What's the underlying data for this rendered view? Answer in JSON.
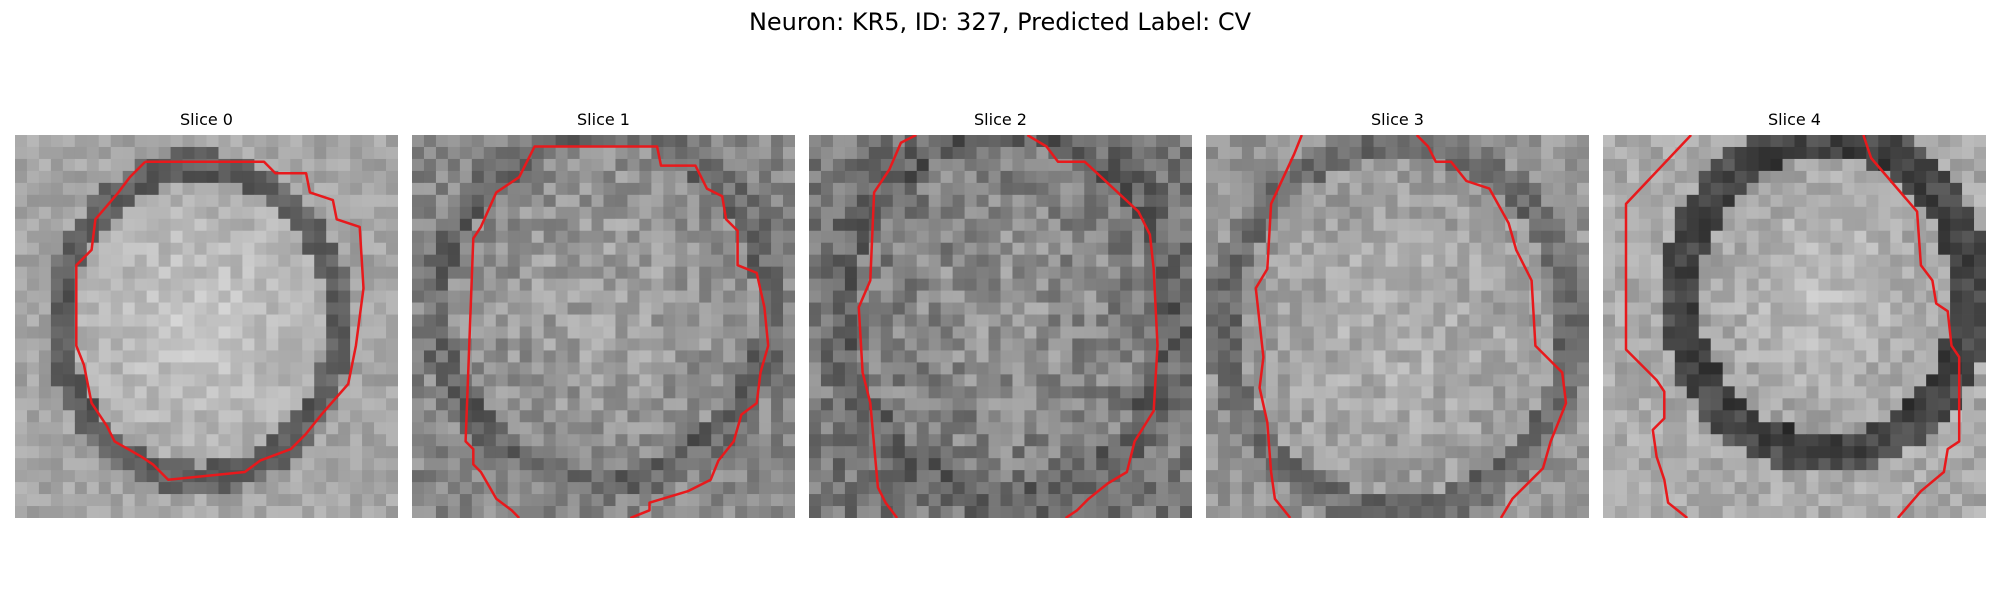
{
  "figure": {
    "title": "Neuron: KR5, ID: 327, Predicted Label: CV",
    "contour_color": "#e8191c",
    "colormap": "gray"
  },
  "panels": [
    {
      "title": "Slice 0"
    },
    {
      "title": "Slice 1"
    },
    {
      "title": "Slice 2"
    },
    {
      "title": "Slice 3"
    },
    {
      "title": "Slice 4"
    }
  ]
}
